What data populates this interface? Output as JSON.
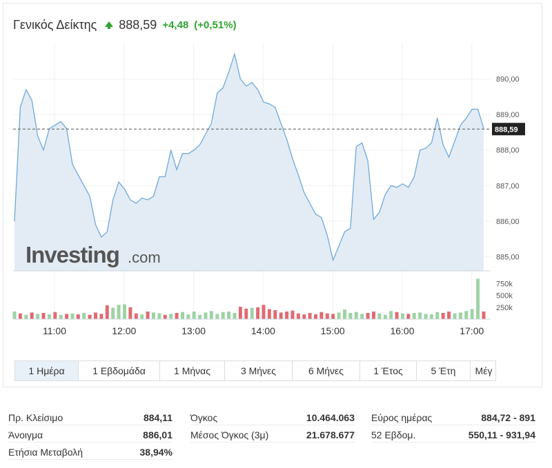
{
  "header": {
    "index_name": "Γενικός Δείκτης",
    "last": "888,59",
    "change": "+4,48",
    "change_pct": "(+0,51%)",
    "up_color": "#2fa42f"
  },
  "watermark": {
    "brand": "Investing",
    "suffix": ".com"
  },
  "chart_data": {
    "type": "area",
    "title": "",
    "xlabel": "",
    "ylabel": "",
    "x_ticks": [
      "11:00",
      "12:00",
      "13:00",
      "14:00",
      "15:00",
      "16:00",
      "17:00"
    ],
    "y_ticks": [
      "890,00",
      "889,00",
      "888,00",
      "887,00",
      "886,00",
      "885,00"
    ],
    "y_tick_values": [
      890,
      889,
      888,
      887,
      886,
      885
    ],
    "ylim": [
      884.6,
      891.0
    ],
    "last_value": 888.59,
    "last_value_label": "888,59",
    "series": [
      {
        "x": [
          "10:24",
          "10:29",
          "10:34",
          "10:39",
          "10:44",
          "10:49",
          "10:54",
          "10:59",
          "11:04",
          "11:09",
          "11:14",
          "11:19",
          "11:24",
          "11:29",
          "11:34",
          "11:39",
          "11:44",
          "11:49",
          "11:54",
          "11:59",
          "12:04",
          "12:09",
          "12:14",
          "12:19",
          "12:24",
          "12:29",
          "12:34",
          "12:39",
          "12:44",
          "12:49",
          "12:54",
          "12:59",
          "13:04",
          "13:09",
          "13:14",
          "13:19",
          "13:24",
          "13:29",
          "13:34",
          "13:39",
          "13:44",
          "13:49",
          "13:54",
          "13:59",
          "14:04",
          "14:09",
          "14:14",
          "14:19",
          "14:24",
          "14:29",
          "14:34",
          "14:39",
          "14:44",
          "14:49",
          "14:54",
          "14:59",
          "15:04",
          "15:09",
          "15:14",
          "15:19",
          "15:24",
          "15:29",
          "15:34",
          "15:39",
          "15:44",
          "15:49",
          "15:54",
          "15:59",
          "16:04",
          "16:09",
          "16:14",
          "16:19",
          "16:24",
          "16:29",
          "16:34",
          "16:39",
          "16:44",
          "16:49",
          "16:54",
          "16:59",
          "17:04",
          "17:09"
        ],
        "values": [
          886.0,
          889.2,
          889.7,
          889.4,
          888.4,
          888.0,
          888.6,
          888.7,
          888.8,
          888.6,
          887.6,
          887.3,
          887.0,
          886.7,
          885.9,
          885.55,
          885.7,
          886.6,
          887.1,
          886.9,
          886.6,
          886.5,
          886.65,
          886.6,
          886.7,
          887.25,
          887.25,
          888.0,
          887.45,
          887.9,
          887.9,
          888.0,
          888.15,
          888.45,
          888.75,
          889.6,
          889.75,
          890.2,
          890.7,
          890.0,
          889.8,
          889.9,
          889.7,
          889.35,
          889.3,
          889.2,
          888.75,
          888.3,
          887.75,
          887.3,
          886.8,
          886.5,
          886.2,
          886.1,
          885.6,
          884.9,
          885.3,
          885.7,
          885.8,
          888.1,
          888.2,
          887.7,
          886.05,
          886.25,
          886.75,
          887.0,
          886.95,
          887.05,
          886.95,
          887.25,
          888.0,
          888.05,
          888.2,
          888.9,
          888.15,
          887.8,
          888.25,
          888.7,
          888.9,
          889.15,
          889.15,
          888.6
        ]
      }
    ],
    "volume": {
      "y_ticks": [
        "750k",
        "500k",
        "250k"
      ],
      "y_tick_values": [
        750000,
        500000,
        250000
      ],
      "ylim": [
        0,
        900000
      ],
      "values": [
        160000,
        120000,
        90000,
        140000,
        110000,
        130000,
        100000,
        150000,
        90000,
        110000,
        120000,
        100000,
        130000,
        90000,
        140000,
        110000,
        290000,
        240000,
        300000,
        310000,
        250000,
        120000,
        100000,
        160000,
        140000,
        120000,
        90000,
        110000,
        130000,
        150000,
        100000,
        160000,
        90000,
        140000,
        170000,
        110000,
        150000,
        160000,
        130000,
        260000,
        220000,
        240000,
        250000,
        300000,
        210000,
        190000,
        140000,
        160000,
        180000,
        120000,
        100000,
        130000,
        100000,
        150000,
        120000,
        110000,
        140000,
        200000,
        130000,
        150000,
        110000,
        130000,
        160000,
        120000,
        90000,
        170000,
        150000,
        120000,
        110000,
        130000,
        140000,
        110000,
        100000,
        150000,
        130000,
        160000,
        120000,
        140000,
        170000,
        210000,
        850000,
        160000
      ],
      "up": [
        true,
        false,
        true,
        false,
        true,
        false,
        true,
        false,
        true,
        false,
        true,
        false,
        true,
        false,
        false,
        false,
        false,
        true,
        true,
        true,
        false,
        false,
        true,
        false,
        true,
        true,
        false,
        true,
        false,
        true,
        true,
        true,
        true,
        true,
        true,
        true,
        true,
        true,
        true,
        false,
        false,
        true,
        false,
        false,
        false,
        false,
        false,
        false,
        false,
        false,
        false,
        false,
        false,
        false,
        false,
        false,
        true,
        true,
        true,
        true,
        true,
        false,
        false,
        true,
        true,
        true,
        false,
        true,
        false,
        true,
        true,
        true,
        true,
        true,
        false,
        false,
        true,
        true,
        true,
        true,
        true,
        false
      ]
    },
    "colors": {
      "line": "#6fa8dc",
      "fill": "#e3ecf4",
      "vol_up": "#9ed3a5",
      "vol_down": "#e06b73",
      "last_label_bg": "#222222"
    }
  },
  "range_tabs": [
    {
      "label": "1 Ημέρα",
      "active": true
    },
    {
      "label": "1 Εβδομάδα",
      "active": false
    },
    {
      "label": "1 Μήνας",
      "active": false
    },
    {
      "label": "3 Μήνες",
      "active": false
    },
    {
      "label": "6 Μήνες",
      "active": false
    },
    {
      "label": "1 Έτος",
      "active": false
    },
    {
      "label": "5 Έτη",
      "active": false
    },
    {
      "label": "Μέγ",
      "active": false
    }
  ],
  "stats": {
    "col1": [
      {
        "label": "Πρ. Κλείσιμο",
        "value": "884,11"
      },
      {
        "label": "Άνοιγμα",
        "value": "886,01"
      },
      {
        "label": "Ετήσια Μεταβολή",
        "value": "38,94%"
      }
    ],
    "col2": [
      {
        "label": "Όγκος",
        "value": "10.464.063"
      },
      {
        "label": "Μέσος Όγκος (3μ)",
        "value": "21.678.677"
      }
    ],
    "col3": [
      {
        "label": "Εύρος ημέρας",
        "value": "884,72 - 891"
      },
      {
        "label": "52 Εβδομ.",
        "value": "550,11 - 931,94"
      }
    ]
  }
}
